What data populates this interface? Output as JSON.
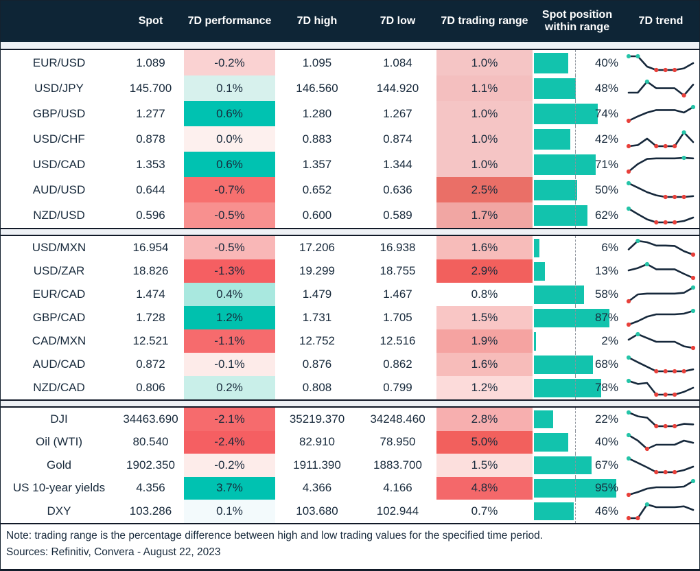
{
  "header": {
    "labels": [
      "Spot",
      "7D performance",
      "7D high",
      "7D low",
      "7D trading range",
      "Spot position within range",
      "7D trend"
    ]
  },
  "colors": {
    "header_navy": "#0e2536",
    "accent_teal": "#00c2b1",
    "negative_red": "#f2605d",
    "bar_teal": "#12c3ad",
    "spark_line": "#16283b",
    "spark_min_dot": "#e8403a",
    "spark_max_dot": "#25c4a8"
  },
  "sections": [
    {
      "rows": [
        {
          "label": "EUR/USD",
          "spot": "1.089",
          "perf": "-0.2%",
          "perf_bg": "#fad2d2",
          "high": "1.095",
          "low": "1.084",
          "range": "1.0%",
          "range_bg": "#f5c5c5",
          "position": 40,
          "position_label": "40%",
          "trend": [
            1,
            1,
            0.25,
            0,
            0,
            0,
            0.12,
            0.5
          ]
        },
        {
          "label": "USD/JPY",
          "spot": "145.700",
          "perf": "0.1%",
          "perf_bg": "#d7f1ed",
          "high": "146.560",
          "low": "144.920",
          "range": "1.1%",
          "range_bg": "#f4bfbf",
          "position": 48,
          "position_label": "48%",
          "trend": [
            0.2,
            0.2,
            1,
            0.52,
            0.52,
            0.52,
            0,
            0.78
          ]
        },
        {
          "label": "GBP/USD",
          "spot": "1.277",
          "perf": "0.6%",
          "perf_bg": "#00c2b1",
          "high": "1.280",
          "low": "1.267",
          "range": "1.0%",
          "range_bg": "#f5c5c5",
          "position": 74,
          "position_label": "74%",
          "trend": [
            0,
            0.32,
            0.6,
            0.78,
            0.78,
            0.78,
            0.6,
            1
          ]
        },
        {
          "label": "USD/CHF",
          "spot": "0.878",
          "perf": "0.0%",
          "perf_bg": "#fdf0ee",
          "high": "0.883",
          "low": "0.874",
          "range": "1.0%",
          "range_bg": "#f5c5c5",
          "position": 42,
          "position_label": "42%",
          "trend": [
            0,
            0.08,
            0.55,
            0,
            0,
            0,
            1,
            0.3
          ]
        },
        {
          "label": "USD/CAD",
          "spot": "1.353",
          "perf": "0.6%",
          "perf_bg": "#00c2b1",
          "high": "1.357",
          "low": "1.344",
          "range": "1.0%",
          "range_bg": "#f5c5c5",
          "position": 71,
          "position_label": "71%",
          "trend": [
            0,
            0.55,
            0.92,
            0.96,
            0.96,
            0.96,
            1,
            0.96
          ]
        },
        {
          "label": "AUD/USD",
          "spot": "0.644",
          "perf": "-0.7%",
          "perf_bg": "#f7706f",
          "high": "0.652",
          "low": "0.636",
          "range": "2.5%",
          "range_bg": "#ea6f67",
          "position": 50,
          "position_label": "50%",
          "trend": [
            1,
            0.68,
            0.35,
            0.12,
            0,
            0,
            0,
            0.06
          ]
        },
        {
          "label": "NZD/USD",
          "spot": "0.596",
          "perf": "-0.5%",
          "perf_bg": "#f8908f",
          "high": "0.600",
          "low": "0.589",
          "range": "1.7%",
          "range_bg": "#f1a6a3",
          "position": 62,
          "position_label": "62%",
          "trend": [
            1,
            0.6,
            0.22,
            0,
            0,
            0,
            0.1,
            0.35
          ]
        }
      ]
    },
    {
      "rows": [
        {
          "label": "USD/MXN",
          "spot": "16.954",
          "perf": "-0.5%",
          "perf_bg": "#f9b7b7",
          "high": "17.206",
          "low": "16.938",
          "range": "1.6%",
          "range_bg": "#f7bcba",
          "position": 6,
          "position_label": "6%",
          "trend": [
            0.38,
            1,
            0.9,
            0.66,
            0.66,
            0.63,
            0.25,
            0
          ]
        },
        {
          "label": "USD/ZAR",
          "spot": "18.826",
          "perf": "-1.3%",
          "perf_bg": "#f55f62",
          "high": "19.299",
          "low": "18.755",
          "range": "2.9%",
          "range_bg": "#f2605d",
          "position": 13,
          "position_label": "13%",
          "trend": [
            0.55,
            0.72,
            1,
            0.63,
            0.63,
            0.63,
            0.3,
            0
          ]
        },
        {
          "label": "EUR/CAD",
          "spot": "1.474",
          "perf": "0.4%",
          "perf_bg": "#a9e8df",
          "high": "1.479",
          "low": "1.467",
          "range": "0.8%",
          "range_bg": "#ffffff",
          "position": 58,
          "position_label": "58%",
          "trend": [
            0,
            0.5,
            0.56,
            0.56,
            0.56,
            0.56,
            0.62,
            1
          ]
        },
        {
          "label": "GBP/CAD",
          "spot": "1.728",
          "perf": "1.2%",
          "perf_bg": "#00c1ae",
          "high": "1.731",
          "low": "1.705",
          "range": "1.5%",
          "range_bg": "#f9c6c5",
          "position": 87,
          "position_label": "87%",
          "trend": [
            0,
            0.25,
            0.58,
            0.75,
            0.75,
            0.75,
            0.8,
            1
          ]
        },
        {
          "label": "CAD/MXN",
          "spot": "12.521",
          "perf": "-1.1%",
          "perf_bg": "#f66b6d",
          "high": "12.752",
          "low": "12.516",
          "range": "1.9%",
          "range_bg": "#f5a3a1",
          "position": 2,
          "position_label": "2%",
          "trend": [
            0.6,
            1,
            0.72,
            0.45,
            0.45,
            0.45,
            0.12,
            0
          ]
        },
        {
          "label": "AUD/CAD",
          "spot": "0.872",
          "perf": "-0.1%",
          "perf_bg": "#fdebe9",
          "high": "0.876",
          "low": "0.862",
          "range": "1.6%",
          "range_bg": "#f7bcba",
          "position": 68,
          "position_label": "68%",
          "trend": [
            1,
            0.66,
            0.33,
            0,
            0,
            0,
            0,
            0.14
          ]
        },
        {
          "label": "NZD/CAD",
          "spot": "0.806",
          "perf": "0.2%",
          "perf_bg": "#c9efe9",
          "high": "0.808",
          "low": "0.799",
          "range": "1.2%",
          "range_bg": "#fcdbda",
          "position": 78,
          "position_label": "78%",
          "trend": [
            1,
            0.78,
            0.85,
            0,
            0,
            0,
            0.2,
            0.5
          ]
        }
      ]
    },
    {
      "rows": [
        {
          "label": "DJI",
          "spot": "34463.690",
          "perf": "-2.1%",
          "perf_bg": "#f66b6d",
          "high": "35219.370",
          "low": "34248.460",
          "range": "2.8%",
          "range_bg": "#f7afaf",
          "position": 22,
          "position_label": "22%",
          "trend": [
            1,
            0.72,
            0.62,
            0,
            0,
            0,
            0.17,
            0.13
          ]
        },
        {
          "label": "Oil (WTI)",
          "spot": "80.540",
          "perf": "-2.4%",
          "perf_bg": "#f55f62",
          "high": "82.910",
          "low": "78.950",
          "range": "5.0%",
          "range_bg": "#f2605d",
          "position": 40,
          "position_label": "40%",
          "trend": [
            1,
            0.6,
            0,
            0.3,
            0.3,
            0.3,
            0.6,
            0.44
          ]
        },
        {
          "label": "Gold",
          "spot": "1902.350",
          "perf": "-0.2%",
          "perf_bg": "#fdecea",
          "high": "1911.390",
          "low": "1883.700",
          "range": "1.5%",
          "range_bg": "#fcdfdd",
          "position": 67,
          "position_label": "67%",
          "trend": [
            1,
            0.68,
            0.35,
            0,
            0,
            0,
            0.15,
            0.4
          ]
        },
        {
          "label": "US 10-year yields",
          "spot": "4.356",
          "perf": "3.7%",
          "perf_bg": "#00c2b1",
          "high": "4.366",
          "low": "4.166",
          "range": "4.8%",
          "range_bg": "#f4686a",
          "position": 95,
          "position_label": "95%",
          "trend": [
            0,
            0.2,
            0.45,
            0.55,
            0.55,
            0.55,
            0.6,
            1
          ]
        },
        {
          "label": "DXY",
          "spot": "103.286",
          "perf": "0.1%",
          "perf_bg": "#f3fafc",
          "high": "103.680",
          "low": "102.944",
          "range": "0.7%",
          "range_bg": "#ffffff",
          "position": 46,
          "position_label": "46%",
          "trend": [
            0,
            0,
            1,
            0.8,
            0.8,
            0.8,
            0.86,
            0.6
          ]
        }
      ]
    }
  ],
  "footer": {
    "note": "Note: trading range is the percentage difference between high and low trading values for the specified time period.",
    "sources": "Sources: Refinitiv, Convera - August 22, 2023"
  }
}
